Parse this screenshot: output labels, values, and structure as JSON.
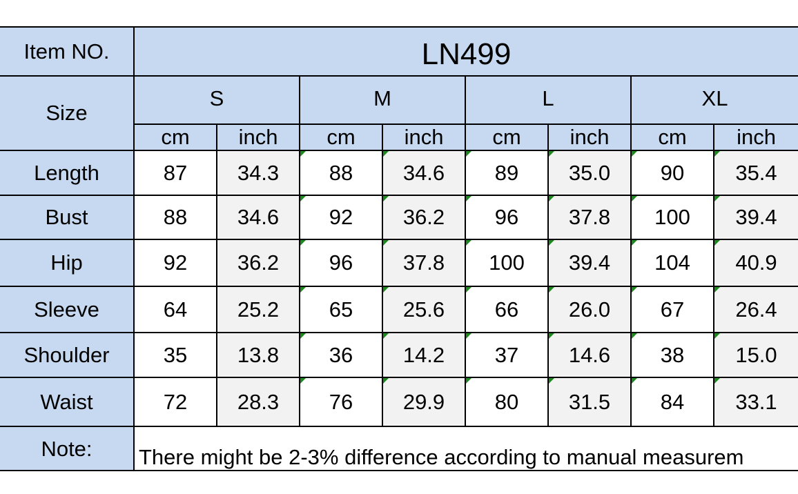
{
  "item_label": "Item NO.",
  "item_no": "LN499",
  "size_label": "Size",
  "sizes": [
    "S",
    "M",
    "L",
    "XL"
  ],
  "units": [
    "cm",
    "inch",
    "cm",
    "inch",
    "cm",
    "inch",
    "cm",
    "inch"
  ],
  "rows": [
    {
      "label": "Length",
      "values": [
        "87",
        "34.3",
        "88",
        "34.6",
        "89",
        "35.0",
        "90",
        "35.4"
      ]
    },
    {
      "label": "Bust",
      "values": [
        "88",
        "34.6",
        "92",
        "36.2",
        "96",
        "37.8",
        "100",
        "39.4"
      ]
    },
    {
      "label": "Hip",
      "values": [
        "92",
        "36.2",
        "96",
        "37.8",
        "100",
        "39.4",
        "104",
        "40.9"
      ]
    },
    {
      "label": "Sleeve",
      "values": [
        "64",
        "25.2",
        "65",
        "25.6",
        "66",
        "26.0",
        "67",
        "26.4"
      ]
    },
    {
      "label": "Shoulder",
      "values": [
        "35",
        "13.8",
        "36",
        "14.2",
        "37",
        "14.6",
        "38",
        "15.0"
      ]
    },
    {
      "label": "Waist",
      "values": [
        "72",
        "28.3",
        "76",
        "29.9",
        "80",
        "31.5",
        "84",
        "33.1"
      ]
    }
  ],
  "note_label": "Note:",
  "note": "There might be 2-3% difference according to manual measurem"
}
